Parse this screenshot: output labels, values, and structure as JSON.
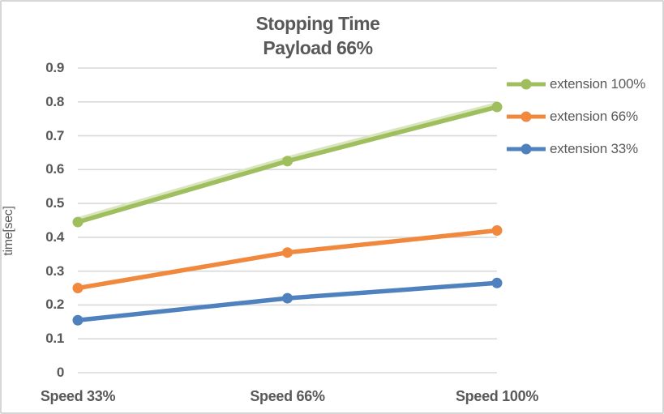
{
  "chart_data": {
    "type": "line",
    "title_line1": "Stopping Time",
    "title_line2": "Payload 66%",
    "ylabel": "time[sec]",
    "xlabel": "",
    "categories": [
      "Speed 33%",
      "Speed 66%",
      "Speed 100%"
    ],
    "series": [
      {
        "name": "extension 100%",
        "color": "#9fbe5d",
        "halo": "#d9e5bd",
        "values": [
          0.445,
          0.625,
          0.785
        ]
      },
      {
        "name": "extension 66%",
        "color": "#f0883e",
        "halo": null,
        "values": [
          0.25,
          0.355,
          0.42
        ]
      },
      {
        "name": "extension 33%",
        "color": "#4e81bd",
        "halo": null,
        "values": [
          0.155,
          0.22,
          0.265
        ]
      }
    ],
    "ylim": [
      0,
      0.9
    ],
    "ytick_step": 0.1,
    "grid": true,
    "legend_position": "right",
    "colors": {
      "gridline": "#d9d9d9",
      "text": "#595959",
      "background": "#ffffff",
      "border": "#d6d6d6"
    }
  }
}
